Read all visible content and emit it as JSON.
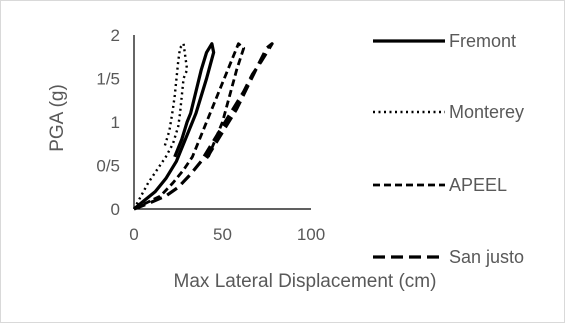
{
  "chart_data": {
    "type": "line",
    "title": "",
    "xlabel": "Max Lateral Displacement (cm)",
    "ylabel": "PGA (g)",
    "xlim": [
      0,
      100
    ],
    "ylim": [
      0,
      2
    ],
    "x_ticks": [
      "0",
      "50",
      "100"
    ],
    "y_ticks": [
      "0",
      "0/5",
      "1",
      "1/5",
      "2"
    ],
    "grid": false,
    "legend_position": "right",
    "series": [
      {
        "name": "Fremont",
        "style": "solid",
        "points": [
          [
            0,
            0
          ],
          [
            6,
            0.1
          ],
          [
            12,
            0.2
          ],
          [
            18,
            0.35
          ],
          [
            24,
            0.55
          ],
          [
            28,
            0.75
          ],
          [
            32,
            0.95
          ],
          [
            35,
            1.1
          ],
          [
            38,
            1.3
          ],
          [
            41,
            1.5
          ],
          [
            43,
            1.65
          ],
          [
            45,
            1.8
          ],
          [
            44,
            1.9
          ],
          [
            41,
            1.8
          ],
          [
            38,
            1.6
          ],
          [
            35,
            1.35
          ],
          [
            32,
            1.1
          ],
          [
            30,
            1.0
          ],
          [
            27,
            0.8
          ],
          [
            23,
            0.6
          ]
        ]
      },
      {
        "name": "Monterey",
        "style": "dotted",
        "points": [
          [
            0,
            0
          ],
          [
            4,
            0.15
          ],
          [
            8,
            0.3
          ],
          [
            13,
            0.45
          ],
          [
            18,
            0.6
          ],
          [
            22,
            0.75
          ],
          [
            25,
            0.95
          ],
          [
            26,
            1.1
          ],
          [
            27,
            1.3
          ],
          [
            28,
            1.5
          ],
          [
            30,
            1.6
          ],
          [
            29,
            1.75
          ],
          [
            28,
            1.9
          ],
          [
            26,
            1.85
          ],
          [
            25,
            1.7
          ],
          [
            24,
            1.5
          ],
          [
            23,
            1.3
          ],
          [
            22,
            1.15
          ],
          [
            20,
            0.9
          ],
          [
            17,
            0.7
          ]
        ]
      },
      {
        "name": "APEEL",
        "style": "dashed",
        "points": [
          [
            0,
            0
          ],
          [
            8,
            0.08
          ],
          [
            15,
            0.15
          ],
          [
            22,
            0.3
          ],
          [
            28,
            0.45
          ],
          [
            33,
            0.6
          ],
          [
            37,
            0.8
          ],
          [
            41,
            1.0
          ],
          [
            45,
            1.2
          ],
          [
            49,
            1.4
          ],
          [
            53,
            1.6
          ],
          [
            56,
            1.75
          ],
          [
            59,
            1.9
          ],
          [
            62,
            1.85
          ],
          [
            58,
            1.6
          ],
          [
            54,
            1.3
          ],
          [
            50,
            1.0
          ],
          [
            46,
            0.8
          ],
          [
            42,
            0.6
          ]
        ]
      },
      {
        "name": "San justo",
        "style": "longdash",
        "points": [
          [
            0,
            0
          ],
          [
            10,
            0.08
          ],
          [
            18,
            0.15
          ],
          [
            25,
            0.25
          ],
          [
            32,
            0.4
          ],
          [
            38,
            0.55
          ],
          [
            44,
            0.75
          ],
          [
            50,
            0.95
          ],
          [
            56,
            1.15
          ],
          [
            62,
            1.35
          ],
          [
            67,
            1.55
          ],
          [
            72,
            1.7
          ],
          [
            78,
            1.9
          ],
          [
            75,
            1.85
          ],
          [
            70,
            1.65
          ],
          [
            64,
            1.4
          ],
          [
            58,
            1.15
          ],
          [
            52,
            0.95
          ],
          [
            46,
            0.75
          ],
          [
            40,
            0.55
          ]
        ]
      }
    ]
  }
}
